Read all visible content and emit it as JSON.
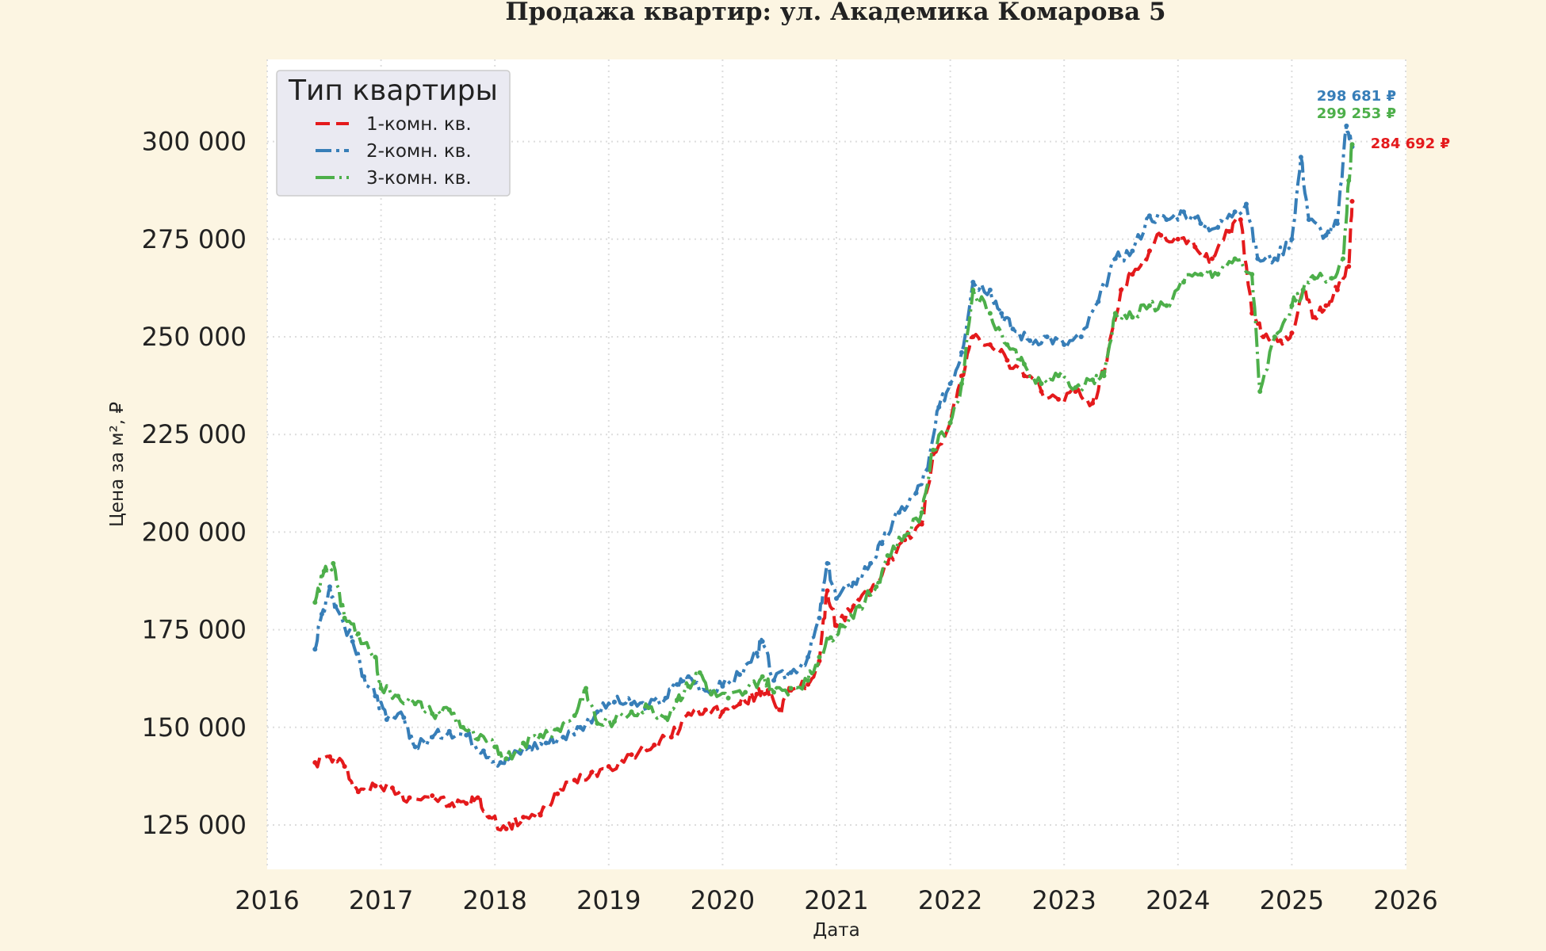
{
  "chart_data": {
    "type": "line",
    "title": "Продажа квартир: ул. Академика Комарова 5",
    "xlabel": "Дата",
    "ylabel": "Цена за м², ₽",
    "xlim": [
      2016.0,
      2026.0
    ],
    "ylim": [
      114000,
      321000
    ],
    "x_ticks": [
      "2016",
      "2017",
      "2018",
      "2019",
      "2020",
      "2021",
      "2022",
      "2023",
      "2024",
      "2025",
      "2026"
    ],
    "y_ticks": [
      "125 000",
      "150 000",
      "175 000",
      "200 000",
      "225 000",
      "250 000",
      "275 000",
      "300 000"
    ],
    "grid": true,
    "legend": {
      "title": "Тип квартиры",
      "placement": "top-left"
    },
    "series": [
      {
        "name": "1-комн. кв.",
        "color": "#e41a1c",
        "dash": "18,8",
        "end_label": "284 692 ₽",
        "points": [
          [
            2016.42,
            141000
          ],
          [
            2016.55,
            142500
          ],
          [
            2016.68,
            140000
          ],
          [
            2016.8,
            133500
          ],
          [
            2016.95,
            135000
          ],
          [
            2017.1,
            134500
          ],
          [
            2017.25,
            132000
          ],
          [
            2017.45,
            132500
          ],
          [
            2017.6,
            130000
          ],
          [
            2017.75,
            130500
          ],
          [
            2017.85,
            132000
          ],
          [
            2017.95,
            127000
          ],
          [
            2018.1,
            124000
          ],
          [
            2018.25,
            127000
          ],
          [
            2018.4,
            127500
          ],
          [
            2018.55,
            133000
          ],
          [
            2018.7,
            136500
          ],
          [
            2018.85,
            138500
          ],
          [
            2019.0,
            140000
          ],
          [
            2019.2,
            143000
          ],
          [
            2019.4,
            145500
          ],
          [
            2019.55,
            147500
          ],
          [
            2019.7,
            153500
          ],
          [
            2019.85,
            154500
          ],
          [
            2020.0,
            154000
          ],
          [
            2020.15,
            156000
          ],
          [
            2020.3,
            158500
          ],
          [
            2020.4,
            159500
          ],
          [
            2020.5,
            154500
          ],
          [
            2020.6,
            159500
          ],
          [
            2020.75,
            161000
          ],
          [
            2020.85,
            167000
          ],
          [
            2020.92,
            185000
          ],
          [
            2021.0,
            176000
          ],
          [
            2021.15,
            181000
          ],
          [
            2021.3,
            185000
          ],
          [
            2021.45,
            192000
          ],
          [
            2021.6,
            198000
          ],
          [
            2021.75,
            202000
          ],
          [
            2021.85,
            220000
          ],
          [
            2022.0,
            228000
          ],
          [
            2022.1,
            240000
          ],
          [
            2022.2,
            250000
          ],
          [
            2022.35,
            248000
          ],
          [
            2022.5,
            244000
          ],
          [
            2022.65,
            240000
          ],
          [
            2022.8,
            236000
          ],
          [
            2022.95,
            234000
          ],
          [
            2023.1,
            236000
          ],
          [
            2023.25,
            233000
          ],
          [
            2023.35,
            241000
          ],
          [
            2023.5,
            262000
          ],
          [
            2023.6,
            266000
          ],
          [
            2023.75,
            272000
          ],
          [
            2023.85,
            276000
          ],
          [
            2024.0,
            275000
          ],
          [
            2024.15,
            273000
          ],
          [
            2024.3,
            270000
          ],
          [
            2024.45,
            277000
          ],
          [
            2024.55,
            280000
          ],
          [
            2024.65,
            256000
          ],
          [
            2024.75,
            250000
          ],
          [
            2024.9,
            249000
          ],
          [
            2025.0,
            251000
          ],
          [
            2025.1,
            262000
          ],
          [
            2025.2,
            255000
          ],
          [
            2025.3,
            258000
          ],
          [
            2025.4,
            262000
          ],
          [
            2025.5,
            268000
          ],
          [
            2025.53,
            284692
          ]
        ]
      },
      {
        "name": "2-комн. кв.",
        "color": "#377eb8",
        "dash": "20,6,4,6",
        "end_label": "298 681 ₽",
        "points": [
          [
            2016.42,
            170000
          ],
          [
            2016.48,
            179000
          ],
          [
            2016.55,
            186000
          ],
          [
            2016.6,
            181000
          ],
          [
            2016.75,
            172000
          ],
          [
            2016.85,
            163000
          ],
          [
            2016.95,
            158000
          ],
          [
            2017.05,
            152000
          ],
          [
            2017.2,
            152500
          ],
          [
            2017.3,
            145000
          ],
          [
            2017.45,
            147500
          ],
          [
            2017.6,
            149000
          ],
          [
            2017.75,
            148000
          ],
          [
            2017.9,
            144000
          ],
          [
            2018.05,
            141000
          ],
          [
            2018.15,
            142500
          ],
          [
            2018.3,
            145000
          ],
          [
            2018.45,
            146000
          ],
          [
            2018.6,
            147500
          ],
          [
            2018.75,
            150000
          ],
          [
            2018.9,
            154000
          ],
          [
            2019.05,
            156500
          ],
          [
            2019.2,
            156000
          ],
          [
            2019.35,
            155500
          ],
          [
            2019.5,
            157500
          ],
          [
            2019.6,
            161000
          ],
          [
            2019.7,
            163000
          ],
          [
            2019.85,
            159500
          ],
          [
            2020.0,
            160500
          ],
          [
            2020.15,
            163500
          ],
          [
            2020.3,
            169000
          ],
          [
            2020.35,
            172000
          ],
          [
            2020.45,
            162000
          ],
          [
            2020.6,
            164000
          ],
          [
            2020.75,
            168000
          ],
          [
            2020.85,
            178000
          ],
          [
            2020.92,
            192000
          ],
          [
            2021.0,
            183000
          ],
          [
            2021.15,
            187000
          ],
          [
            2021.3,
            192000
          ],
          [
            2021.4,
            197000
          ],
          [
            2021.55,
            205000
          ],
          [
            2021.7,
            210000
          ],
          [
            2021.8,
            216000
          ],
          [
            2021.9,
            232000
          ],
          [
            2022.0,
            238000
          ],
          [
            2022.1,
            246000
          ],
          [
            2022.2,
            264000
          ],
          [
            2022.35,
            262000
          ],
          [
            2022.45,
            256000
          ],
          [
            2022.55,
            252000
          ],
          [
            2022.7,
            249000
          ],
          [
            2022.85,
            250000
          ],
          [
            2023.0,
            248000
          ],
          [
            2023.15,
            250000
          ],
          [
            2023.3,
            259000
          ],
          [
            2023.45,
            270000
          ],
          [
            2023.6,
            272000
          ],
          [
            2023.75,
            281000
          ],
          [
            2023.9,
            280000
          ],
          [
            2024.05,
            282000
          ],
          [
            2024.2,
            279000
          ],
          [
            2024.35,
            278000
          ],
          [
            2024.5,
            282000
          ],
          [
            2024.6,
            284000
          ],
          [
            2024.7,
            270000
          ],
          [
            2024.85,
            270000
          ],
          [
            2025.0,
            275000
          ],
          [
            2025.08,
            296000
          ],
          [
            2025.15,
            280000
          ],
          [
            2025.3,
            276000
          ],
          [
            2025.4,
            279000
          ],
          [
            2025.48,
            304000
          ],
          [
            2025.53,
            298681
          ]
        ]
      },
      {
        "name": "3-комн. кв.",
        "color": "#4daf4a",
        "dash": "24,6,3,6",
        "end_label": "299 253 ₽",
        "points": [
          [
            2016.42,
            182000
          ],
          [
            2016.5,
            190000
          ],
          [
            2016.58,
            192000
          ],
          [
            2016.68,
            178000
          ],
          [
            2016.8,
            174000
          ],
          [
            2016.95,
            168000
          ],
          [
            2017.0,
            160000
          ],
          [
            2017.15,
            158000
          ],
          [
            2017.3,
            156000
          ],
          [
            2017.45,
            153500
          ],
          [
            2017.6,
            154500
          ],
          [
            2017.72,
            150000
          ],
          [
            2017.85,
            147000
          ],
          [
            2018.0,
            145000
          ],
          [
            2018.1,
            142000
          ],
          [
            2018.25,
            146000
          ],
          [
            2018.4,
            148000
          ],
          [
            2018.55,
            149500
          ],
          [
            2018.7,
            153000
          ],
          [
            2018.8,
            160000
          ],
          [
            2018.9,
            151000
          ],
          [
            2019.05,
            151500
          ],
          [
            2019.2,
            154000
          ],
          [
            2019.35,
            155000
          ],
          [
            2019.5,
            152500
          ],
          [
            2019.6,
            157000
          ],
          [
            2019.7,
            160500
          ],
          [
            2019.8,
            164000
          ],
          [
            2019.9,
            158500
          ],
          [
            2020.05,
            157500
          ],
          [
            2020.2,
            159000
          ],
          [
            2020.35,
            163000
          ],
          [
            2020.45,
            159000
          ],
          [
            2020.6,
            160000
          ],
          [
            2020.75,
            162000
          ],
          [
            2020.85,
            168000
          ],
          [
            2020.95,
            173000
          ],
          [
            2021.05,
            176000
          ],
          [
            2021.2,
            181000
          ],
          [
            2021.35,
            186000
          ],
          [
            2021.45,
            194000
          ],
          [
            2021.6,
            199000
          ],
          [
            2021.75,
            205000
          ],
          [
            2021.85,
            221000
          ],
          [
            2022.0,
            228000
          ],
          [
            2022.1,
            238000
          ],
          [
            2022.2,
            262000
          ],
          [
            2022.35,
            256000
          ],
          [
            2022.5,
            248000
          ],
          [
            2022.65,
            243000
          ],
          [
            2022.8,
            238000
          ],
          [
            2022.95,
            240000
          ],
          [
            2023.1,
            237000
          ],
          [
            2023.25,
            239000
          ],
          [
            2023.35,
            240000
          ],
          [
            2023.45,
            256000
          ],
          [
            2023.6,
            255000
          ],
          [
            2023.75,
            258000
          ],
          [
            2023.9,
            258000
          ],
          [
            2024.05,
            264000
          ],
          [
            2024.2,
            266000
          ],
          [
            2024.35,
            266000
          ],
          [
            2024.5,
            270000
          ],
          [
            2024.65,
            266000
          ],
          [
            2024.72,
            236000
          ],
          [
            2024.85,
            250000
          ],
          [
            2025.0,
            258000
          ],
          [
            2025.1,
            262000
          ],
          [
            2025.2,
            265000
          ],
          [
            2025.35,
            265000
          ],
          [
            2025.45,
            270000
          ],
          [
            2025.5,
            290000
          ],
          [
            2025.53,
            299253
          ]
        ]
      }
    ]
  }
}
